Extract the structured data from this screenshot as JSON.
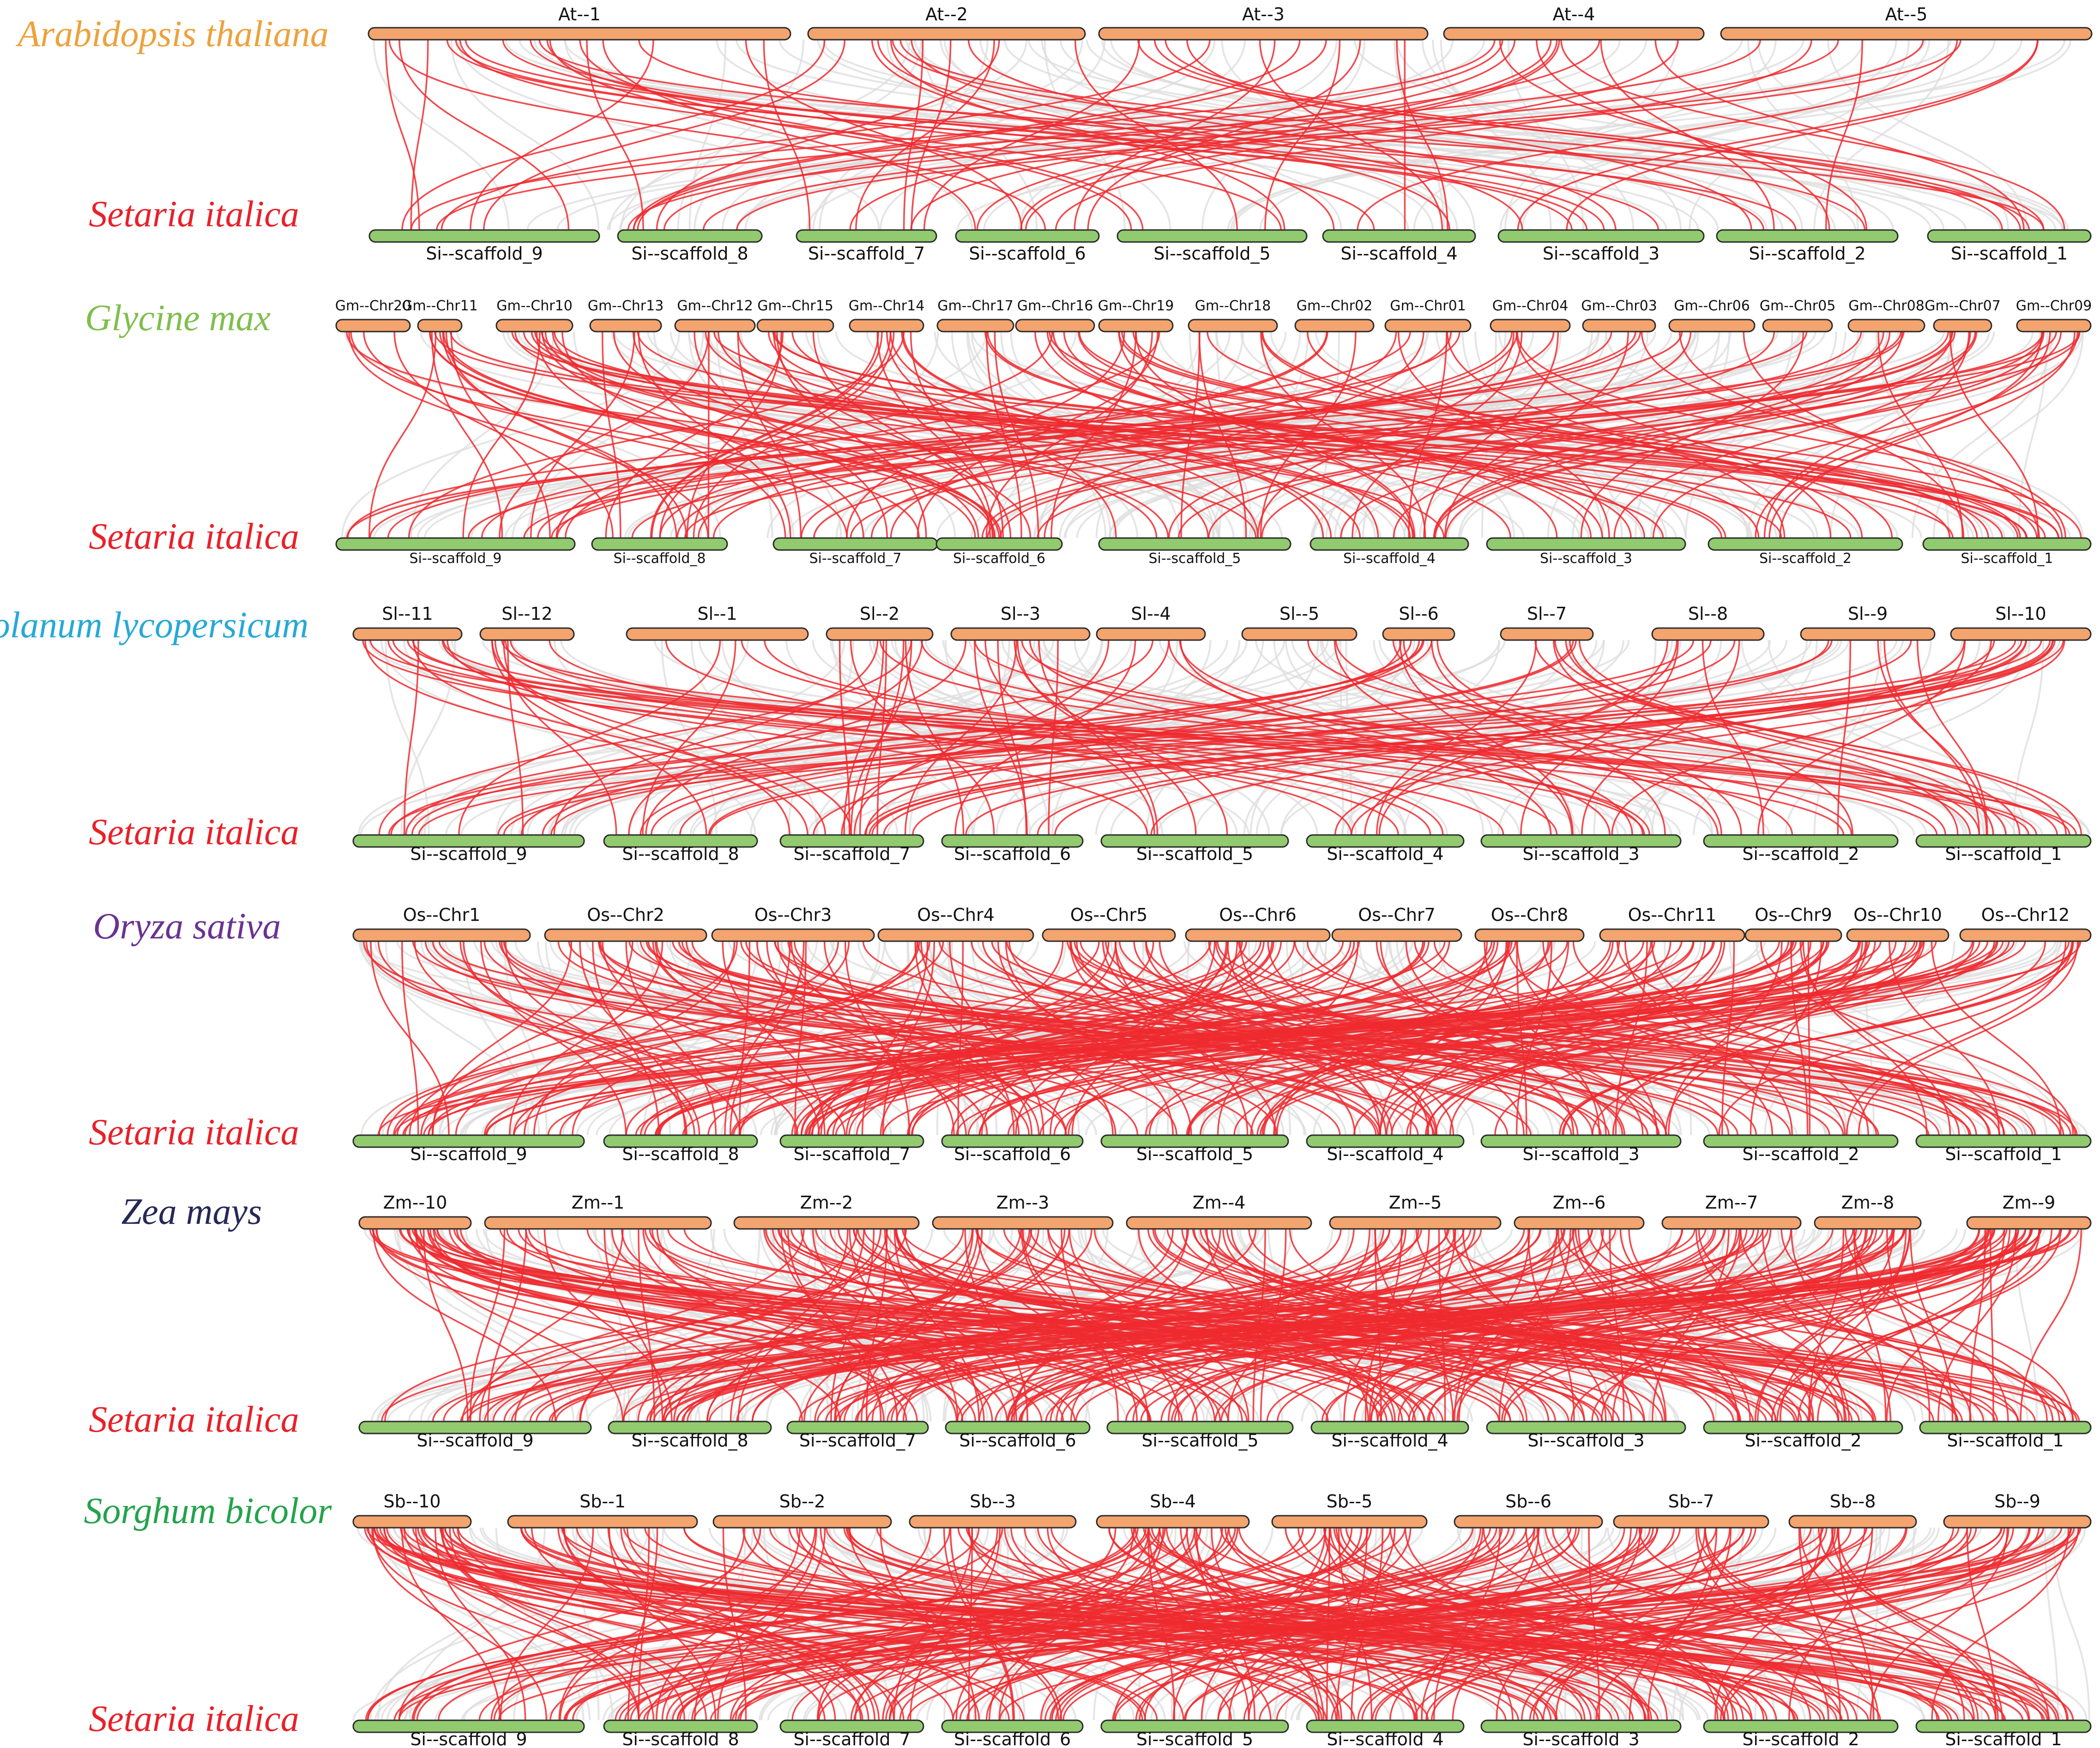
{
  "colors": {
    "top_bar": "#F4A46E",
    "bottom_bar": "#92CB6F",
    "syntenic_highlight": "#EE2A2F",
    "background_link": "#DCDCDC",
    "bar_outline": "#2B2B2B"
  },
  "panels": [
    {
      "species_top": "Arabidopsis thaliana",
      "species_top_color": "#EDA23C",
      "species_bottom": "Setaria italica",
      "species_bottom_color": "#E8212A",
      "top_chromosomes": [
        "At--1",
        "At--2",
        "At--3",
        "At--4",
        "At--5"
      ],
      "bottom_chromosomes": [
        "Si--scaffold_9",
        "Si--scaffold_8",
        "Si--scaffold_7",
        "Si--scaffold_6",
        "Si--scaffold_5",
        "Si--scaffold_4",
        "Si--scaffold_3",
        "Si--scaffold_2",
        "Si--scaffold_1"
      ]
    },
    {
      "species_top": "Glycine max",
      "species_top_color": "#7FBF4D",
      "species_bottom": "Setaria italica",
      "species_bottom_color": "#E8212A",
      "top_chromosomes": [
        "Gm--Chr20",
        "Gm--Chr11",
        "Gm--Chr10",
        "Gm--Chr13",
        "Gm--Chr12",
        "Gm--Chr15",
        "Gm--Chr14",
        "Gm--Chr17",
        "Gm--Chr16",
        "Gm--Chr19",
        "Gm--Chr18",
        "Gm--Chr02",
        "Gm--Chr01",
        "Gm--Chr04",
        "Gm--Chr03",
        "Gm--Chr06",
        "Gm--Chr05",
        "Gm--Chr08",
        "Gm--Chr07",
        "Gm--Chr09"
      ],
      "bottom_chromosomes": [
        "Si--scaffold_9",
        "Si--scaffold_8",
        "Si--scaffold_7",
        "Si--scaffold_6",
        "Si--scaffold_5",
        "Si--scaffold_4",
        "Si--scaffold_3",
        "Si--scaffold_2",
        "Si--scaffold_1"
      ]
    },
    {
      "species_top": "Solanum lycopersicum",
      "species_top_color": "#27A9D6",
      "species_bottom": "Setaria italica",
      "species_bottom_color": "#E8212A",
      "top_chromosomes": [
        "Sl--11",
        "Sl--12",
        "Sl--1",
        "Sl--2",
        "Sl--3",
        "Sl--4",
        "Sl--5",
        "Sl--6",
        "Sl--7",
        "Sl--8",
        "Sl--9",
        "Sl--10"
      ],
      "bottom_chromosomes": [
        "Si--scaffold_9",
        "Si--scaffold_8",
        "Si--scaffold_7",
        "Si--scaffold_6",
        "Si--scaffold_5",
        "Si--scaffold_4",
        "Si--scaffold_3",
        "Si--scaffold_2",
        "Si--scaffold_1"
      ]
    },
    {
      "species_top": "Oryza sativa",
      "species_top_color": "#6A3391",
      "species_bottom": "Setaria italica",
      "species_bottom_color": "#E8212A",
      "top_chromosomes": [
        "Os--Chr1",
        "Os--Chr2",
        "Os--Chr3",
        "Os--Chr4",
        "Os--Chr5",
        "Os--Chr6",
        "Os--Chr7",
        "Os--Chr8",
        "Os--Chr11",
        "Os--Chr9",
        "Os--Chr10",
        "Os--Chr12"
      ],
      "bottom_chromosomes": [
        "Si--scaffold_9",
        "Si--scaffold_8",
        "Si--scaffold_7",
        "Si--scaffold_6",
        "Si--scaffold_5",
        "Si--scaffold_4",
        "Si--scaffold_3",
        "Si--scaffold_2",
        "Si--scaffold_1"
      ]
    },
    {
      "species_top": "Zea mays",
      "species_top_color": "#262856",
      "species_bottom": "Setaria italica",
      "species_bottom_color": "#E8212A",
      "top_chromosomes": [
        "Zm--10",
        "Zm--1",
        "Zm--2",
        "Zm--3",
        "Zm--4",
        "Zm--5",
        "Zm--6",
        "Zm--7",
        "Zm--8",
        "Zm--9"
      ],
      "bottom_chromosomes": [
        "Si--scaffold_9",
        "Si--scaffold_8",
        "Si--scaffold_7",
        "Si--scaffold_6",
        "Si--scaffold_5",
        "Si--scaffold_4",
        "Si--scaffold_3",
        "Si--scaffold_2",
        "Si--scaffold_1"
      ]
    },
    {
      "species_top": "Sorghum bicolor",
      "species_top_color": "#23A34C",
      "species_bottom": "Setaria italica",
      "species_bottom_color": "#E8212A",
      "top_chromosomes": [
        "Sb--10",
        "Sb--1",
        "Sb--2",
        "Sb--3",
        "Sb--4",
        "Sb--5",
        "Sb--6",
        "Sb--7",
        "Sb--8",
        "Sb--9"
      ],
      "bottom_chromosomes": [
        "Si--scaffold_9",
        "Si--scaffold_8",
        "Si--scaffold_7",
        "Si--scaffold_6",
        "Si--scaffold_5",
        "Si--scaffold_4",
        "Si--scaffold_3",
        "Si--scaffold_2",
        "Si--scaffold_1"
      ]
    }
  ]
}
